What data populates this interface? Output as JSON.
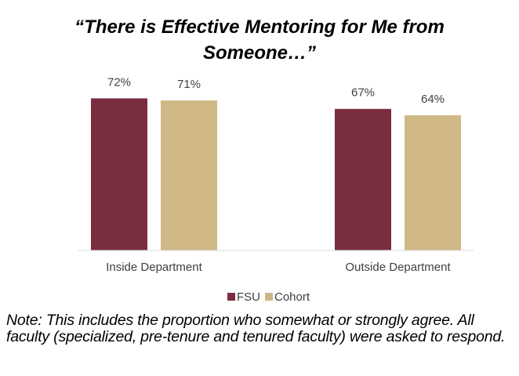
{
  "chart_data": {
    "type": "bar",
    "title": "“There is Effective Mentoring for Me from Someone…”",
    "categories": [
      "Inside Department",
      "Outside Department"
    ],
    "series": [
      {
        "name": "FSU",
        "color": "#7a2d3f",
        "values": [
          72,
          67
        ],
        "value_labels": [
          "72%",
          "67%"
        ]
      },
      {
        "name": "Cohort",
        "color": "#cfb886",
        "values": [
          71,
          64
        ],
        "value_labels": [
          "71%",
          "64%"
        ]
      }
    ],
    "ylim": [
      0,
      100
    ],
    "note": "Note: This includes the proportion who somewhat or strongly agree. All faculty (specialized, pre-tenure and tenured faculty) were asked to respond."
  }
}
